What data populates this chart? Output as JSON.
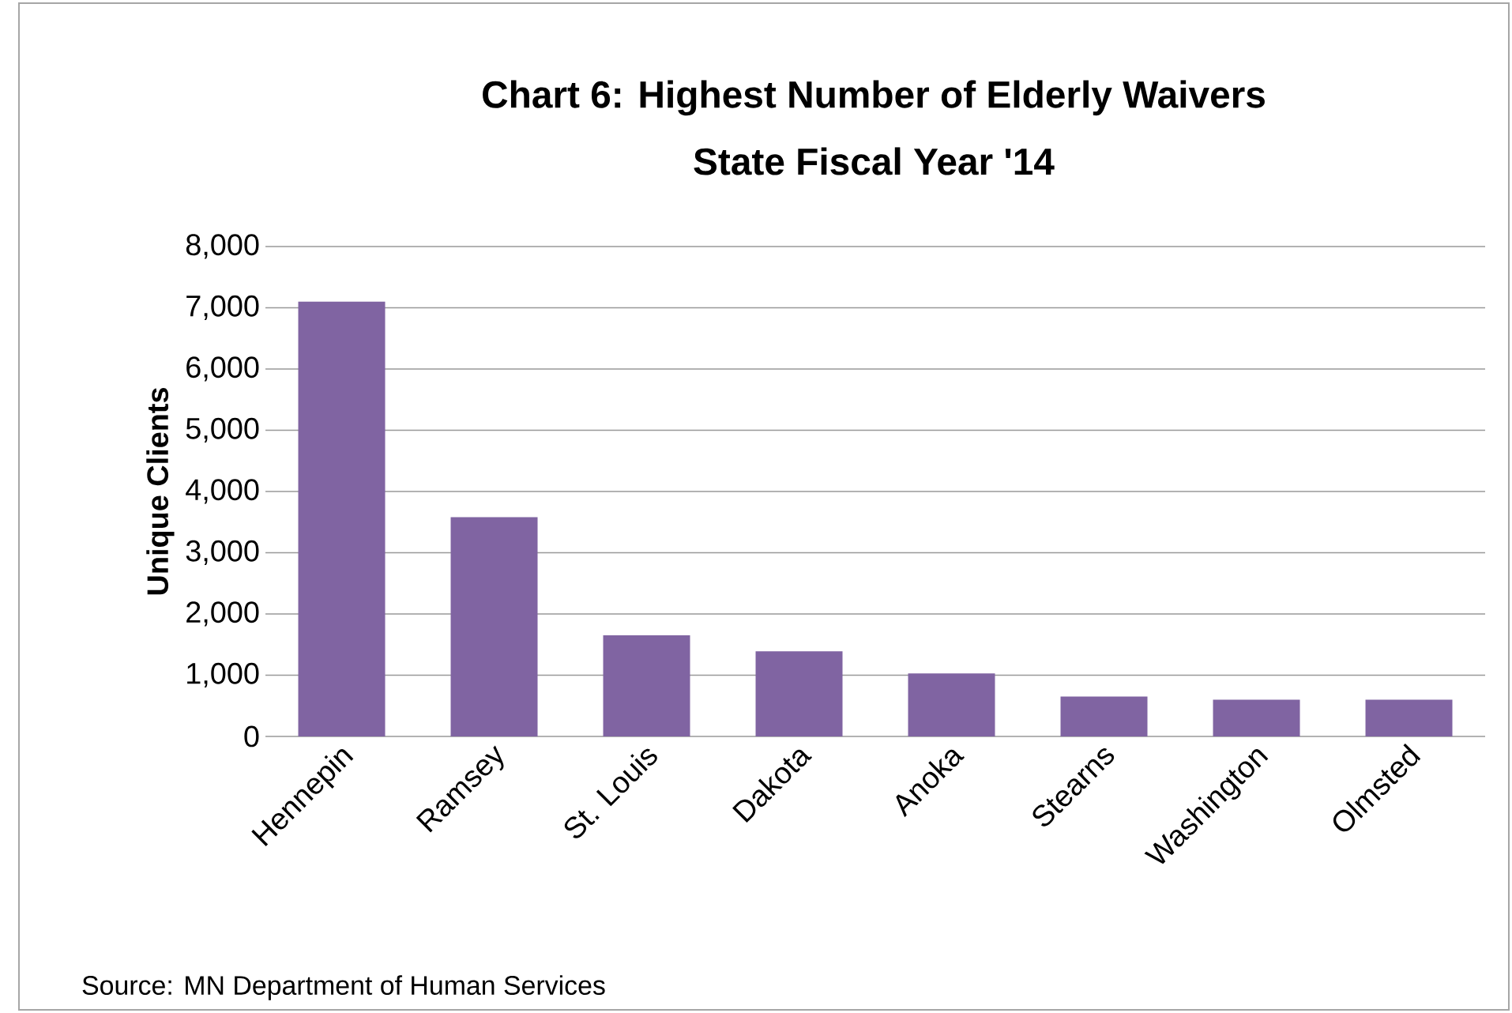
{
  "chart_data": {
    "type": "bar",
    "title": "Chart 6: Highest Number of Elderly Waivers",
    "subtitle": "State Fiscal Year '14",
    "ylabel": "Unique Clients",
    "categories": [
      "Hennepin",
      "Ramsey",
      "St. Louis",
      "Dakota",
      "Anoka",
      "Stearns",
      "Washington",
      "Olmsted"
    ],
    "values": [
      7100,
      3580,
      1650,
      1390,
      1030,
      650,
      600,
      600
    ],
    "color": "#8064a2",
    "ylim": [
      0,
      8000
    ],
    "yticks": [
      0,
      {
        "value": 1000,
        "label": "1,000"
      },
      {
        "value": 2000,
        "label": "2,000"
      },
      {
        "value": 3000,
        "label": "3,000"
      },
      {
        "value": 4000,
        "label": "4,000"
      },
      {
        "value": 5000,
        "label": "5,000"
      },
      {
        "value": 6000,
        "label": "6,000"
      },
      {
        "value": 7000,
        "label": "7,000"
      },
      {
        "value": 8000,
        "label": "8,000"
      }
    ],
    "grid": "y",
    "annotations": [
      "Source:  MN Department of Human Services"
    ]
  }
}
